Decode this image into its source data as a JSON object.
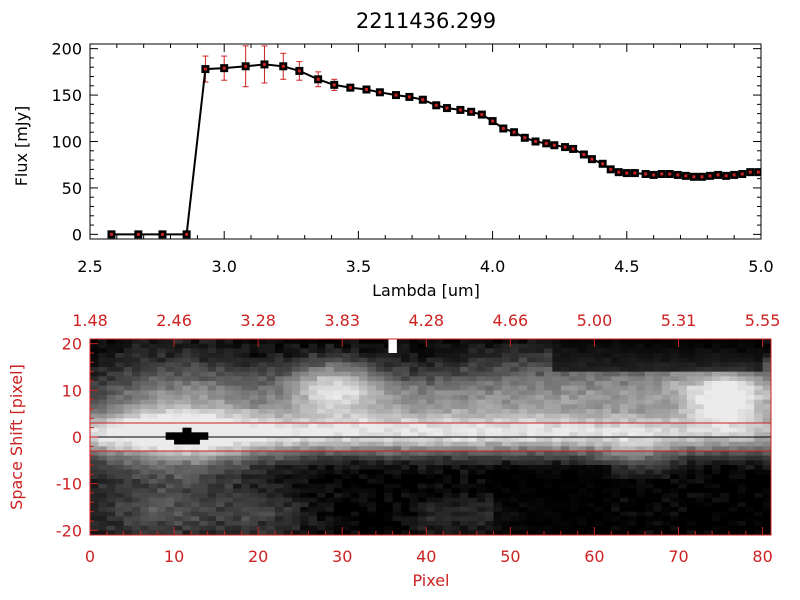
{
  "chart_data": [
    {
      "type": "line",
      "title": "2211436.299",
      "xlabel": "Lambda [um]",
      "ylabel": "Flux [mJy]",
      "xlim": [
        2.5,
        5.0
      ],
      "ylim": [
        -5,
        205
      ],
      "x_ticks": [
        "2.5",
        "3.0",
        "3.5",
        "4.0",
        "4.5",
        "5.0"
      ],
      "y_ticks": [
        "0",
        "50",
        "100",
        "150",
        "200"
      ],
      "series": [
        {
          "x": [
            2.58,
            2.68,
            2.77,
            2.86,
            2.93,
            3.0,
            3.08,
            3.15,
            3.22,
            3.28,
            3.35,
            3.41,
            3.47,
            3.53,
            3.58,
            3.64,
            3.69,
            3.74,
            3.79,
            3.83,
            3.88,
            3.92,
            3.96,
            4.0,
            4.04,
            4.08,
            4.12,
            4.16,
            4.2,
            4.23,
            4.27,
            4.3,
            4.34,
            4.37,
            4.41,
            4.44,
            4.47,
            4.5,
            4.53,
            4.57,
            4.6,
            4.63,
            4.66,
            4.69,
            4.72,
            4.75,
            4.78,
            4.81,
            4.84,
            4.87,
            4.9,
            4.93,
            4.96,
            4.99
          ],
          "y": [
            0,
            0,
            0,
            0,
            178,
            179,
            181,
            183,
            181,
            176,
            167,
            161,
            158,
            156,
            153,
            150,
            148,
            145,
            139,
            136,
            134,
            132,
            129,
            122,
            114,
            110,
            104,
            100,
            98,
            96,
            94,
            92,
            86,
            81,
            76,
            70,
            67,
            66,
            66,
            65,
            64,
            65,
            65,
            64,
            63,
            62,
            62,
            63,
            64,
            63,
            64,
            65,
            67,
            67
          ],
          "yerr": [
            0,
            0,
            0,
            0,
            14,
            13,
            22,
            20,
            14,
            10,
            8,
            6,
            3,
            3,
            3,
            3,
            3,
            3,
            3,
            3,
            3,
            3,
            3,
            3,
            3,
            3,
            3,
            3,
            3,
            3,
            3,
            3,
            3,
            3,
            3,
            3,
            3,
            3,
            3,
            3,
            3,
            3,
            3,
            3,
            3,
            3,
            3,
            3,
            3,
            3,
            3,
            3,
            3,
            3
          ]
        }
      ]
    },
    {
      "type": "heatmap",
      "xlabel": "Pixel",
      "ylabel": "Space Shift [pixel]",
      "xlim": [
        0,
        81
      ],
      "ylim": [
        -21,
        21
      ],
      "x_ticks": [
        "0",
        "10",
        "20",
        "30",
        "40",
        "50",
        "60",
        "70",
        "80"
      ],
      "y_ticks": [
        "-20",
        "-10",
        "0",
        "10",
        "20"
      ],
      "top_ticks": [
        "1.48",
        "2.46",
        "3.28",
        "3.83",
        "4.28",
        "4.66",
        "5.00",
        "5.31",
        "5.55"
      ],
      "horizontal_lines_y": [
        3,
        0,
        -3
      ],
      "colormap": "grayscale",
      "axis_color": "#cc2222"
    }
  ]
}
